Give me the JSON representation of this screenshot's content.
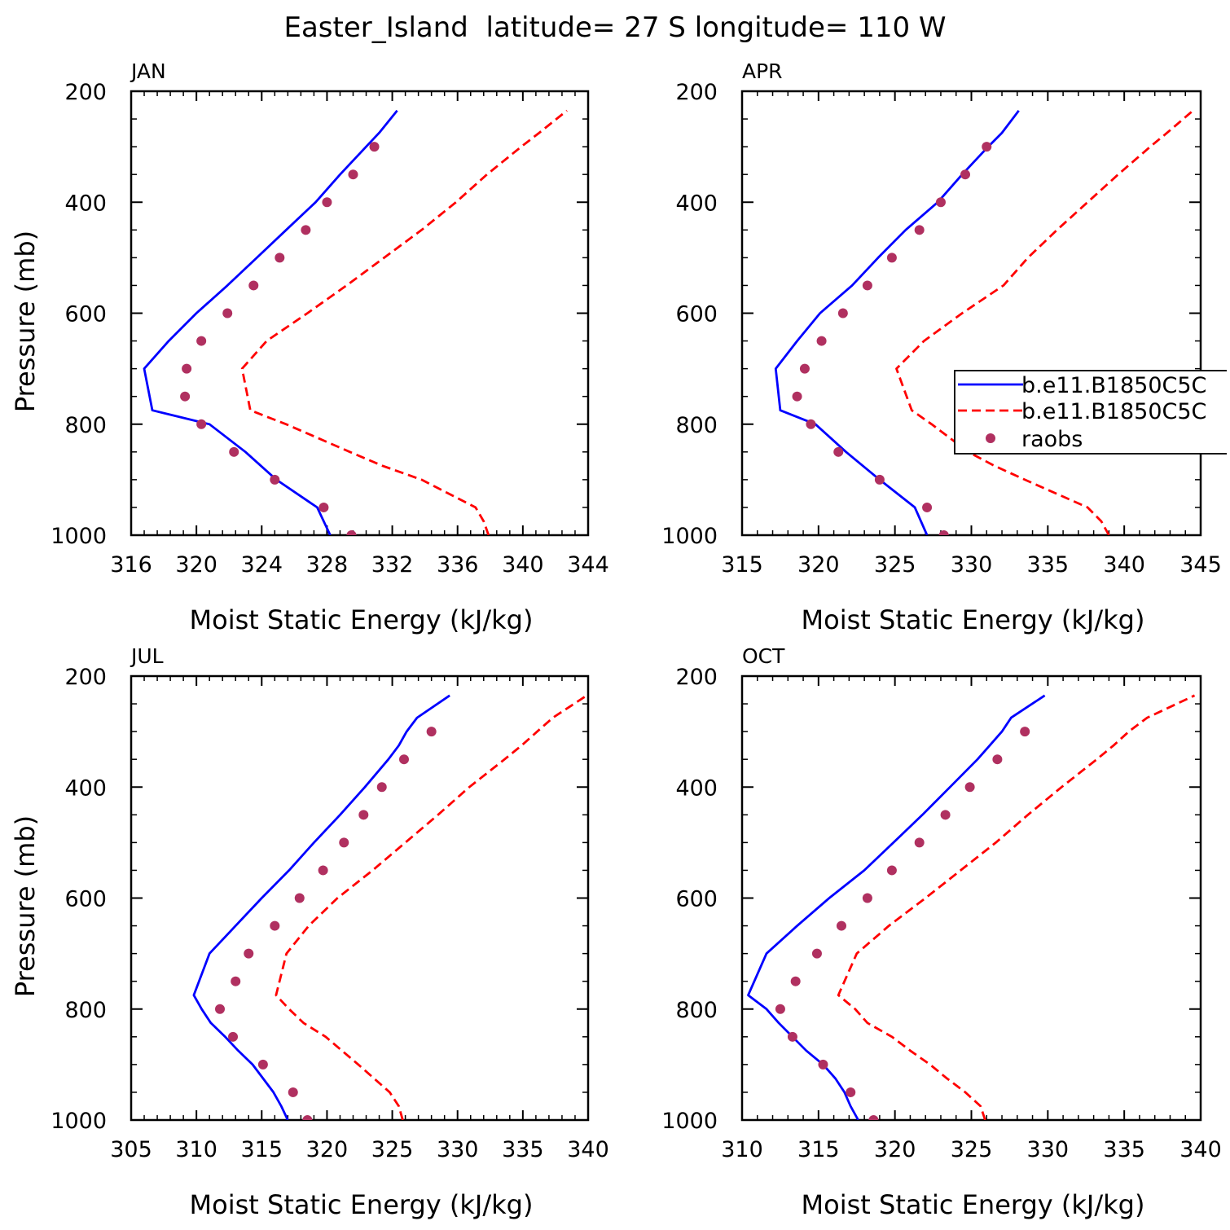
{
  "title": "Easter_Island  latitude= 27 S longitude= 110 W",
  "legend": {
    "entries": [
      {
        "label": "b.e11.B1850C5C",
        "color": "#0000ff",
        "style": "solid"
      },
      {
        "label": "b.e11.B1850C5C",
        "color": "#ff0000",
        "style": "dashed"
      },
      {
        "label": "raobs",
        "color": "#b03060",
        "style": "dot"
      }
    ]
  },
  "colors": {
    "model_solid": "#0000ff",
    "model_dashed": "#ff0000",
    "raobs": "#b03060"
  },
  "chart_data": [
    {
      "type": "line",
      "title": "JAN",
      "xlabel": "Moist Static Energy (kJ/kg)",
      "ylabel": "Pressure (mb)",
      "xlim": [
        316,
        344
      ],
      "xticks": [
        316,
        320,
        324,
        328,
        332,
        336,
        340,
        344
      ],
      "ylim": [
        200,
        1000
      ],
      "yticks": [
        200,
        400,
        600,
        800,
        1000
      ],
      "series": [
        {
          "name": "b.e11.B1850C5C",
          "style": "solid",
          "pressure": [
            1000,
            950,
            900,
            850,
            800,
            775,
            700,
            650,
            600,
            550,
            500,
            450,
            400,
            350,
            300,
            275,
            235
          ],
          "values": [
            328.2,
            327.4,
            324.9,
            323,
            320.8,
            317.3,
            316.8,
            318.3,
            320,
            321.9,
            323.7,
            325.5,
            327.3,
            328.8,
            330.4,
            331.2,
            332.3
          ]
        },
        {
          "name": "b.e11.B1850C5C",
          "style": "dashed",
          "pressure": [
            1000,
            975,
            950,
            900,
            875,
            850,
            800,
            775,
            700,
            650,
            600,
            550,
            500,
            450,
            400,
            350,
            300,
            275,
            235
          ],
          "values": [
            337.9,
            337.6,
            337.1,
            333.8,
            331.4,
            329.4,
            325.5,
            323.3,
            322.8,
            324.3,
            326.8,
            329.2,
            331.5,
            333.8,
            335.9,
            337.8,
            339.9,
            341,
            342.7
          ]
        },
        {
          "name": "raobs",
          "style": "dot",
          "pressure": [
            1000,
            950,
            900,
            850,
            800,
            750,
            700,
            650,
            600,
            550,
            500,
            450,
            400,
            350,
            300
          ],
          "values": [
            329.5,
            327.8,
            324.8,
            322.3,
            320.3,
            319.3,
            319.4,
            320.3,
            321.9,
            323.5,
            325.1,
            326.7,
            328,
            329.6,
            330.9
          ]
        }
      ]
    },
    {
      "type": "line",
      "title": "APR",
      "xlabel": "Moist Static Energy (kJ/kg)",
      "ylabel": "",
      "xlim": [
        315,
        345
      ],
      "xticks": [
        315,
        320,
        325,
        330,
        335,
        340,
        345
      ],
      "ylim": [
        200,
        1000
      ],
      "yticks": [
        200,
        400,
        600,
        800,
        1000
      ],
      "series": [
        {
          "name": "b.e11.B1850C5C",
          "style": "solid",
          "pressure": [
            1000,
            950,
            900,
            850,
            800,
            775,
            700,
            650,
            600,
            550,
            500,
            450,
            400,
            350,
            300,
            275,
            235
          ],
          "values": [
            327.1,
            326.3,
            324,
            321.8,
            319.8,
            317.5,
            317.2,
            318.6,
            320.1,
            322.2,
            323.9,
            325.7,
            327.8,
            329.4,
            331.1,
            332,
            333.1
          ]
        },
        {
          "name": "b.e11.B1850C5C",
          "style": "dashed",
          "pressure": [
            1000,
            975,
            950,
            900,
            875,
            850,
            800,
            775,
            700,
            650,
            600,
            550,
            500,
            450,
            400,
            350,
            300,
            275,
            235
          ],
          "values": [
            339,
            338.5,
            337.6,
            333.5,
            331.5,
            329.8,
            327.4,
            326.1,
            325.1,
            326.9,
            329.4,
            332.1,
            333.7,
            335.6,
            337.6,
            339.6,
            341.7,
            342.8,
            344.5
          ]
        },
        {
          "name": "raobs",
          "style": "dot",
          "pressure": [
            1000,
            950,
            900,
            850,
            800,
            750,
            700,
            650,
            600,
            550,
            500,
            450,
            400,
            350,
            300
          ],
          "values": [
            328.2,
            327.1,
            324,
            321.3,
            319.5,
            318.6,
            319.1,
            320.2,
            321.6,
            323.2,
            324.8,
            326.6,
            328,
            329.6,
            331
          ]
        }
      ]
    },
    {
      "type": "line",
      "title": "JUL",
      "xlabel": "Moist Static Energy (kJ/kg)",
      "ylabel": "Pressure (mb)",
      "xlim": [
        305,
        340
      ],
      "xticks": [
        305,
        310,
        315,
        320,
        325,
        330,
        335,
        340
      ],
      "ylim": [
        200,
        1000
      ],
      "yticks": [
        200,
        400,
        600,
        800,
        1000
      ],
      "series": [
        {
          "name": "b.e11.B1850C5C",
          "style": "solid",
          "pressure": [
            1000,
            975,
            950,
            925,
            900,
            875,
            850,
            825,
            800,
            775,
            700,
            650,
            600,
            550,
            500,
            450,
            400,
            350,
            325,
            300,
            275,
            235
          ],
          "values": [
            317,
            316.5,
            315.9,
            315.1,
            314.3,
            313.2,
            312.2,
            311.1,
            310.4,
            309.8,
            311,
            313,
            315,
            317.1,
            319,
            321,
            322.9,
            324.7,
            325.5,
            326.1,
            326.9,
            329.4
          ]
        },
        {
          "name": "b.e11.B1850C5C",
          "style": "dashed",
          "pressure": [
            1000,
            975,
            950,
            925,
            900,
            850,
            825,
            800,
            775,
            700,
            650,
            600,
            550,
            500,
            450,
            400,
            350,
            325,
            300,
            275,
            235
          ],
          "values": [
            325.8,
            325.5,
            324.8,
            323.6,
            322.4,
            319.9,
            318.2,
            317.1,
            316.1,
            316.9,
            318.6,
            320.8,
            323.5,
            326,
            328.5,
            330.9,
            333.6,
            334.9,
            336.1,
            337.3,
            339.9
          ]
        },
        {
          "name": "raobs",
          "style": "dot",
          "pressure": [
            1000,
            950,
            900,
            850,
            800,
            750,
            700,
            650,
            600,
            550,
            500,
            450,
            400,
            350,
            300
          ],
          "values": [
            318.5,
            317.4,
            315.1,
            312.8,
            311.8,
            313,
            314,
            316,
            317.9,
            319.7,
            321.3,
            322.8,
            324.2,
            325.9,
            328
          ]
        }
      ]
    },
    {
      "type": "line",
      "title": "OCT",
      "xlabel": "Moist Static Energy (kJ/kg)",
      "ylabel": "",
      "xlim": [
        310,
        340
      ],
      "xticks": [
        310,
        315,
        320,
        325,
        330,
        335,
        340
      ],
      "ylim": [
        200,
        1000
      ],
      "yticks": [
        200,
        400,
        600,
        800,
        1000
      ],
      "series": [
        {
          "name": "b.e11.B1850C5C",
          "style": "solid",
          "pressure": [
            1000,
            975,
            950,
            925,
            900,
            875,
            850,
            825,
            800,
            775,
            700,
            650,
            600,
            550,
            500,
            450,
            400,
            350,
            325,
            300,
            275,
            235
          ],
          "values": [
            317.6,
            317.1,
            316.7,
            316.1,
            315.3,
            314.2,
            313.3,
            312.4,
            311.6,
            310.4,
            311.6,
            313.6,
            315.7,
            318,
            319.9,
            321.8,
            323.6,
            325.4,
            326.2,
            327,
            327.6,
            329.8
          ]
        },
        {
          "name": "b.e11.B1850C5C",
          "style": "dashed",
          "pressure": [
            1000,
            975,
            950,
            925,
            900,
            875,
            850,
            825,
            800,
            775,
            700,
            650,
            600,
            550,
            500,
            450,
            400,
            350,
            325,
            300,
            275,
            235
          ],
          "values": [
            325.9,
            325.6,
            324.6,
            323.4,
            322.3,
            321,
            319.8,
            318.2,
            317.4,
            316.3,
            317.5,
            319.6,
            322,
            324.3,
            326.6,
            328.7,
            330.9,
            333.2,
            334.3,
            335.3,
            336.5,
            339.6
          ]
        },
        {
          "name": "raobs",
          "style": "dot",
          "pressure": [
            1000,
            950,
            900,
            850,
            800,
            750,
            700,
            650,
            600,
            550,
            500,
            450,
            400,
            350,
            300
          ],
          "values": [
            318.6,
            317.1,
            315.3,
            313.3,
            312.5,
            313.5,
            314.9,
            316.5,
            318.2,
            319.8,
            321.6,
            323.3,
            324.9,
            326.7,
            328.5
          ]
        }
      ]
    }
  ]
}
